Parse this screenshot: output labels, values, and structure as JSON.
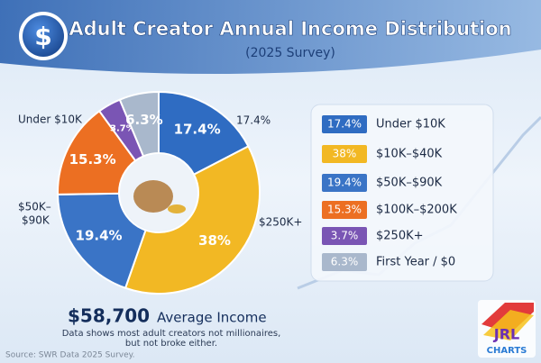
{
  "chart_data": {
    "type": "pie",
    "title": "Adult Creator Annual Income Distribution",
    "subtitle": "(2025 Survey)",
    "categories": [
      "Under $10K",
      "$10K–$40K",
      "$50K–$90K",
      "$100K–$200K",
      "$250K+",
      "First Year / $0"
    ],
    "values": [
      17.4,
      38,
      19.4,
      15.3,
      3.7,
      6.3
    ],
    "value_labels": [
      "17.4%",
      "38%",
      "19.4%",
      "15.3%",
      "3.7%",
      "6.3%"
    ],
    "colors": [
      "#2f6cc2",
      "#f2b824",
      "#3a74c6",
      "#ec6f22",
      "#7a55b4",
      "#a9b8cc"
    ],
    "annotations": [
      "Under $10K",
      "17.4%",
      "$50K–",
      "$90K",
      "$250K+"
    ],
    "average_value": "$58,700",
    "average_label": "Average Income",
    "note": [
      "Data shows most adult creators not millionaires,",
      "but not broke either."
    ],
    "source": "Source: SWR Data 2025 Survey.",
    "logo": [
      "JRL",
      "CHARTS"
    ]
  }
}
